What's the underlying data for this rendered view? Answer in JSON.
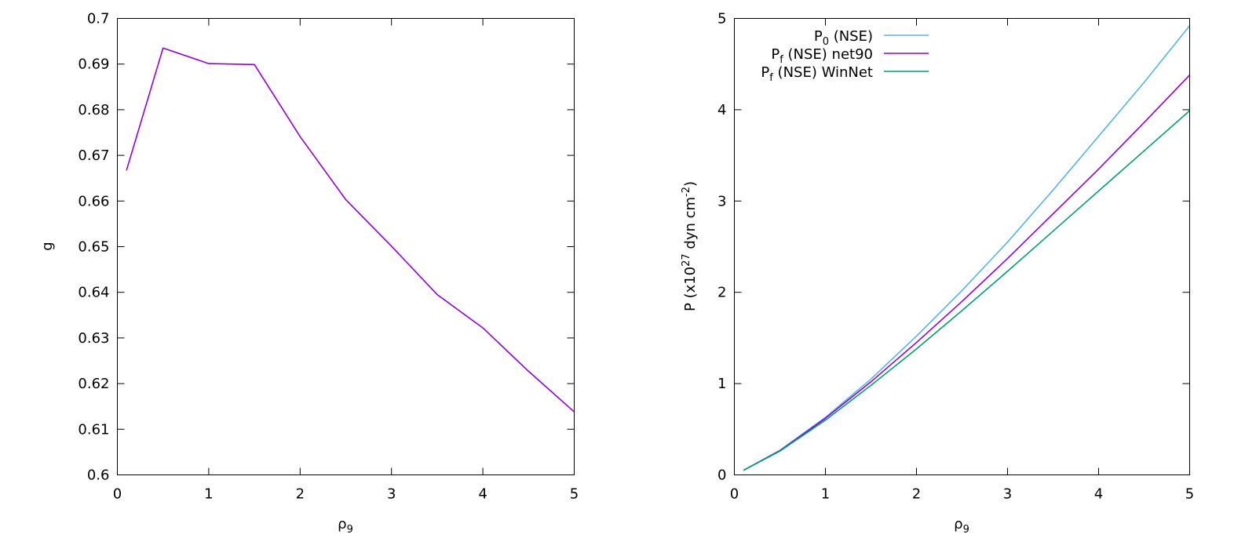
{
  "chart_data": [
    {
      "type": "line",
      "xlabel": {
        "base": "ρ",
        "sub": "9"
      },
      "ylabel": "g",
      "xlim": [
        0,
        5
      ],
      "ylim": [
        0.6,
        0.7
      ],
      "xticks": [
        0,
        1,
        2,
        3,
        4,
        5
      ],
      "xtick_labels": [
        "0",
        "1",
        "2",
        "3",
        "4",
        "5"
      ],
      "yticks": [
        0.6,
        0.61,
        0.62,
        0.63,
        0.64,
        0.65,
        0.66,
        0.67,
        0.68,
        0.69,
        0.7
      ],
      "ytick_labels": [
        "0.6",
        "0.61",
        "0.62",
        "0.63",
        "0.64",
        "0.65",
        "0.66",
        "0.67",
        "0.68",
        "0.69",
        "0.7"
      ],
      "grid": false,
      "series": [
        {
          "color": "#9400d3",
          "x": [
            0.1,
            0.5,
            1.0,
            1.5,
            2.0,
            2.5,
            3.0,
            3.5,
            4.0,
            4.5,
            5.0
          ],
          "y": [
            0.6667,
            0.6935,
            0.6901,
            0.6899,
            0.6741,
            0.6603,
            0.6501,
            0.6395,
            0.6322,
            0.6227,
            0.6138
          ]
        }
      ]
    },
    {
      "type": "line",
      "xlabel": {
        "base": "ρ",
        "sub": "9"
      },
      "ylabel": {
        "pre": "P (x10",
        "sup1": "27",
        "mid": " dyn cm",
        "sup2": "-2",
        "post": ")"
      },
      "xlim": [
        0,
        5
      ],
      "ylim": [
        0,
        5
      ],
      "xticks": [
        0,
        1,
        2,
        3,
        4,
        5
      ],
      "xtick_labels": [
        "0",
        "1",
        "2",
        "3",
        "4",
        "5"
      ],
      "yticks": [
        0,
        1,
        2,
        3,
        4,
        5
      ],
      "ytick_labels": [
        "0",
        "1",
        "2",
        "3",
        "4",
        "5"
      ],
      "grid": false,
      "legend_position": "top-left",
      "series": [
        {
          "name": {
            "base": "P",
            "sub": "0",
            "rest": " (NSE)"
          },
          "color": "#56b4e9",
          "x": [
            0.1,
            0.5,
            1.0,
            1.5,
            2.0,
            2.5,
            3.0,
            3.5,
            4.0,
            4.5,
            5.0
          ],
          "y": [
            0.05,
            0.27,
            0.63,
            1.05,
            1.52,
            2.02,
            2.55,
            3.12,
            3.71,
            4.3,
            4.92
          ]
        },
        {
          "name": {
            "base": "P",
            "sub": "f",
            "rest": " (NSE) net90"
          },
          "color": "#9400d3",
          "x": [
            0.1,
            0.5,
            1.0,
            1.5,
            2.0,
            2.5,
            3.0,
            3.5,
            4.0,
            4.5,
            5.0
          ],
          "y": [
            0.05,
            0.265,
            0.62,
            1.02,
            1.45,
            1.9,
            2.37,
            2.86,
            3.35,
            3.86,
            4.38
          ]
        },
        {
          "name": {
            "base": "P",
            "sub": "f",
            "rest": " (NSE) WinNet"
          },
          "color": "#009e73",
          "x": [
            0.1,
            0.5,
            1.0,
            1.5,
            2.0,
            2.5,
            3.0,
            3.5,
            4.0,
            4.5,
            5.0
          ],
          "y": [
            0.05,
            0.26,
            0.6,
            0.98,
            1.38,
            1.8,
            2.23,
            2.67,
            3.11,
            3.55,
            3.99
          ]
        }
      ]
    }
  ]
}
